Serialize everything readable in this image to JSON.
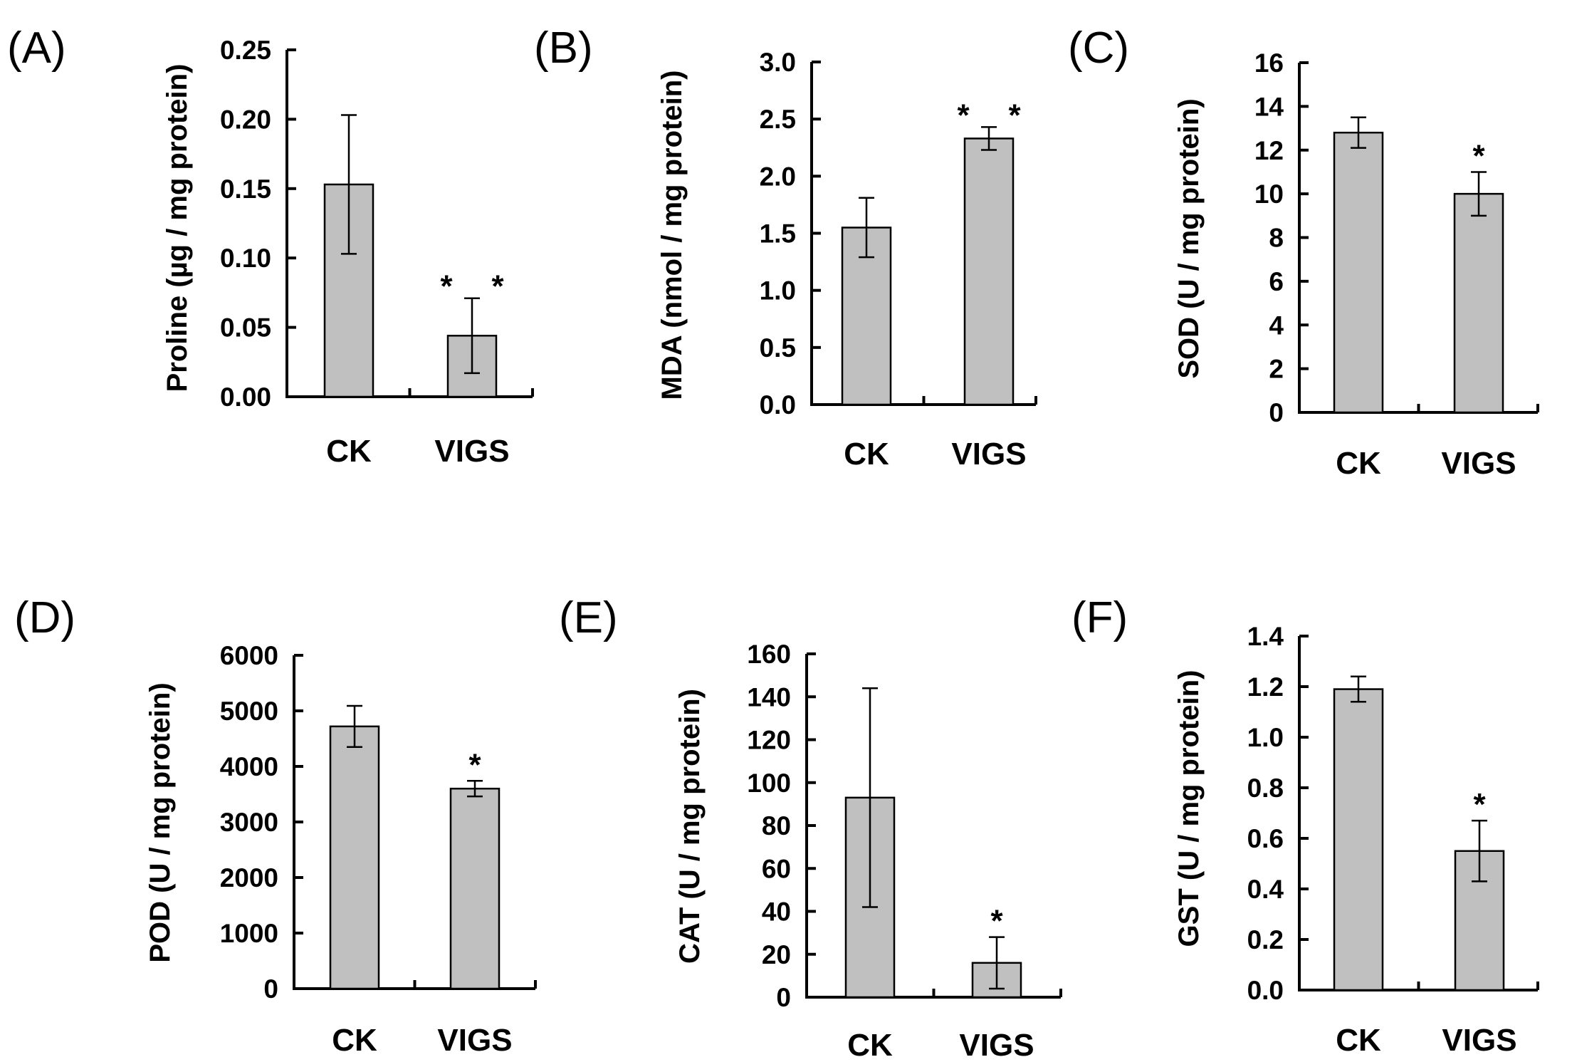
{
  "chart_data": [
    {
      "type": "bar",
      "panel": "(A)",
      "categories": [
        "CK",
        "VIGS"
      ],
      "values": [
        0.153,
        0.044
      ],
      "errors": [
        0.05,
        0.027
      ],
      "significance": [
        "",
        "* *"
      ],
      "ylabel": "Proline (µg / mg protein)",
      "ylim": [
        0,
        0.25
      ],
      "yticks": [
        "0.00",
        "0.05",
        "0.10",
        "0.15",
        "0.20",
        "0.25"
      ],
      "color": "#c0c0c0"
    },
    {
      "type": "bar",
      "panel": "(B)",
      "categories": [
        "CK",
        "VIGS"
      ],
      "values": [
        1.55,
        2.33
      ],
      "errors": [
        0.26,
        0.1
      ],
      "significance": [
        "",
        "* *"
      ],
      "ylabel": "MDA (nmol / mg protein)",
      "ylim": [
        0,
        3.0
      ],
      "yticks": [
        "0.0",
        "0.5",
        "1.0",
        "1.5",
        "2.0",
        "2.5",
        "3.0"
      ],
      "color": "#c0c0c0"
    },
    {
      "type": "bar",
      "panel": "(C)",
      "categories": [
        "CK",
        "VIGS"
      ],
      "values": [
        12.8,
        10.0
      ],
      "errors": [
        0.7,
        1.0
      ],
      "significance": [
        "",
        "*"
      ],
      "ylabel": "SOD (U / mg protein)",
      "ylim": [
        0,
        16
      ],
      "yticks": [
        "0",
        "2",
        "4",
        "6",
        "8",
        "10",
        "12",
        "14",
        "16"
      ],
      "color": "#c0c0c0"
    },
    {
      "type": "bar",
      "panel": "(D)",
      "categories": [
        "CK",
        "VIGS"
      ],
      "values": [
        4720,
        3600
      ],
      "errors": [
        370,
        140
      ],
      "significance": [
        "",
        "*"
      ],
      "ylabel": "POD (U / mg protein)",
      "ylim": [
        0,
        6000
      ],
      "yticks": [
        "0",
        "1000",
        "2000",
        "3000",
        "4000",
        "5000",
        "6000"
      ],
      "color": "#c0c0c0"
    },
    {
      "type": "bar",
      "panel": "(E)",
      "categories": [
        "CK",
        "VIGS"
      ],
      "values": [
        93,
        16
      ],
      "errors": [
        51,
        12
      ],
      "significance": [
        "",
        "*"
      ],
      "ylabel": "CAT (U / mg protein)",
      "ylim": [
        0,
        160
      ],
      "yticks": [
        "0",
        "20",
        "40",
        "60",
        "80",
        "100",
        "120",
        "140",
        "160"
      ],
      "color": "#c0c0c0"
    },
    {
      "type": "bar",
      "panel": "(F)",
      "categories": [
        "CK",
        "VIGS"
      ],
      "values": [
        1.19,
        0.55
      ],
      "errors": [
        0.05,
        0.12
      ],
      "significance": [
        "",
        "*"
      ],
      "ylabel": "GST (U / mg protein)",
      "ylim": [
        0,
        1.4
      ],
      "yticks": [
        "0.0",
        "0.2",
        "0.4",
        "0.6",
        "0.8",
        "1.0",
        "1.2",
        "1.4"
      ],
      "color": "#c0c0c0"
    }
  ]
}
